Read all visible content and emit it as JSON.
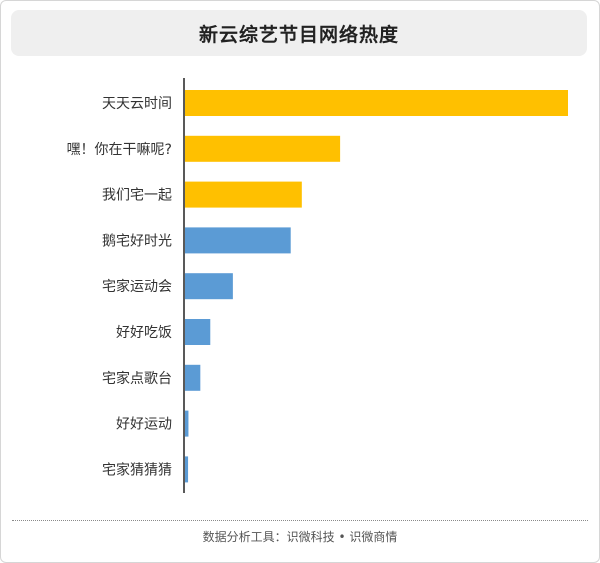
{
  "chart_data": {
    "type": "bar",
    "orientation": "horizontal",
    "title": "新云综艺节目网络热度",
    "categories": [
      "天天云时间",
      "嘿！你在干嘛呢?",
      "我们宅一起",
      "鹅宅好时光",
      "宅家运动会",
      "好好吃饭",
      "宅家点歌台",
      "好好运动",
      "宅家猜猜猜"
    ],
    "values": [
      100,
      40.5,
      30.5,
      27.6,
      12.5,
      6.6,
      4.0,
      0.9,
      0.8
    ],
    "bar_colors": [
      "#ffc000",
      "#ffc000",
      "#ffc000",
      "#5b9bd5",
      "#5b9bd5",
      "#5b9bd5",
      "#5b9bd5",
      "#5b9bd5",
      "#5b9bd5"
    ],
    "xlim": [
      0,
      100
    ],
    "grid": false,
    "legend": "none"
  },
  "footer": "数据分析工具：识微科技 • 识微商情",
  "colors": {
    "highlight": "#ffc000",
    "normal": "#5b9bd5",
    "axis": "#222222"
  }
}
